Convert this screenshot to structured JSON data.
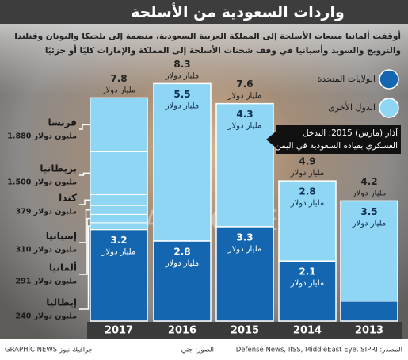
{
  "chart_data": {
    "type": "bar",
    "stacked": true,
    "title": "واردات السعودية من الأسلحة",
    "subtitle": [
      "أوقفت ألمانيا مبيعات الأسلحة إلى المملكة العربية السعودية، منضمة إلى بلجيكا واليونان وفنلندا",
      "والنرويج والسويد وأسبانيا في وقف شحنات الأسلحة إلى المملكة والإمارات كليًا أو جزئيًا"
    ],
    "categories": [
      "2017",
      "2016",
      "2015",
      "2014",
      "2013"
    ],
    "unit": "مليار دولار",
    "series": [
      {
        "name": "الولايات المتحدة",
        "color": "#1566b0",
        "values": [
          3.2,
          2.8,
          3.3,
          2.1,
          0.7
        ]
      },
      {
        "name": "الدول الأخرى",
        "color": "#8fd6f4",
        "values": [
          4.6,
          5.5,
          4.3,
          2.8,
          3.5
        ],
        "value_labels": [
          null,
          "5.5",
          "4.3",
          "2.8",
          "3.5"
        ]
      }
    ],
    "totals": [
      7.8,
      8.3,
      7.6,
      4.9,
      4.2
    ],
    "breakdown": [
      {
        "name": "فرنسا",
        "value": 1880,
        "label": "1.880 مليون دولار"
      },
      {
        "name": "بريطانيا",
        "value": 1500,
        "label": "1.500 مليون دولار"
      },
      {
        "name": "كندا",
        "value": 379,
        "label": "379 مليون دولار"
      },
      {
        "name": "إسبانيا",
        "value": 310,
        "label": "310 مليون دولار"
      },
      {
        "name": "ألمانيا",
        "value": 291,
        "label": "291 مليون دولار"
      },
      {
        "name": "إيطاليا",
        "value": 240,
        "label": "240 مليون دولار"
      }
    ],
    "annotation": [
      "آذار (مارس) 2015: التدخل",
      "العسكري بقيادة السعودية في اليمن"
    ],
    "watermark": "GRAPHIC NEWS",
    "source": "المصدر: Defense News, IISS, MiddleEast Eye, SIPRI",
    "credit": "الصور: جتي",
    "publisher": "GRAPHIC NEWS جرافيك نيوز"
  }
}
